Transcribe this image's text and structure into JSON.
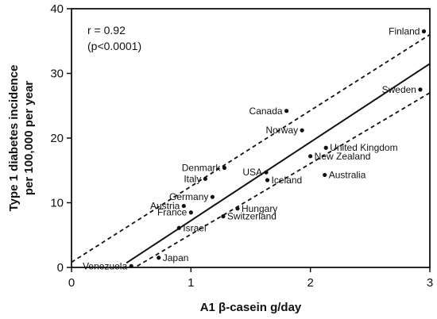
{
  "chart_data": {
    "type": "scatter",
    "xlabel": "A1 β-casein g/day",
    "ylabel_lines": [
      "Type 1 diabetes incidence",
      "per 100,000 per year"
    ],
    "xlim": [
      0,
      3
    ],
    "ylim": [
      0,
      40
    ],
    "xticks": [
      0,
      1,
      2,
      3
    ],
    "yticks": [
      0,
      10,
      20,
      30,
      40
    ],
    "annotations": [
      "r = 0.92",
      "(p<0.0001)"
    ],
    "points": [
      {
        "label": "Finland",
        "x": 2.95,
        "y": 36.5,
        "label_side": "left"
      },
      {
        "label": "Sweden",
        "x": 2.92,
        "y": 27.5,
        "label_side": "left"
      },
      {
        "label": "Canada",
        "x": 1.8,
        "y": 24.2,
        "label_side": "left"
      },
      {
        "label": "Norway",
        "x": 1.93,
        "y": 21.2,
        "label_side": "left"
      },
      {
        "label": "United Kingdom",
        "x": 2.13,
        "y": 18.5,
        "label_side": "right"
      },
      {
        "label": "New Zealand",
        "x": 2.0,
        "y": 17.2,
        "label_side": "right"
      },
      {
        "label": "Australia",
        "x": 2.12,
        "y": 14.3,
        "label_side": "right"
      },
      {
        "label": "Denmark",
        "x": 1.28,
        "y": 15.4,
        "label_side": "left"
      },
      {
        "label": "USA",
        "x": 1.63,
        "y": 14.7,
        "label_side": "left"
      },
      {
        "label": "Italy",
        "x": 1.12,
        "y": 13.7,
        "label_side": "left"
      },
      {
        "label": "Iceland",
        "x": 1.64,
        "y": 13.5,
        "label_side": "right"
      },
      {
        "label": "Germany",
        "x": 1.18,
        "y": 10.9,
        "label_side": "left"
      },
      {
        "label": "Austria",
        "x": 0.94,
        "y": 9.5,
        "label_side": "left"
      },
      {
        "label": "France",
        "x": 1.0,
        "y": 8.5,
        "label_side": "left"
      },
      {
        "label": "Hungary",
        "x": 1.39,
        "y": 9.1,
        "label_side": "right"
      },
      {
        "label": "Switzerland",
        "x": 1.27,
        "y": 7.9,
        "label_side": "right"
      },
      {
        "label": "Israel",
        "x": 0.9,
        "y": 6.1,
        "label_side": "right"
      },
      {
        "label": "Japan",
        "x": 0.73,
        "y": 1.5,
        "label_side": "right"
      },
      {
        "label": "Venezuela",
        "x": 0.5,
        "y": 0.2,
        "label_side": "left"
      }
    ],
    "regression": {
      "x1": 0.46,
      "y1": 0.7,
      "x2": 3.0,
      "y2": 31.5
    },
    "ci_upper": {
      "x1": 0.0,
      "y1": 0.8,
      "x2": 3.0,
      "y2": 36.0
    },
    "ci_lower": {
      "x1": 0.55,
      "y1": 0.2,
      "x2": 3.0,
      "y2": 27.0
    }
  }
}
